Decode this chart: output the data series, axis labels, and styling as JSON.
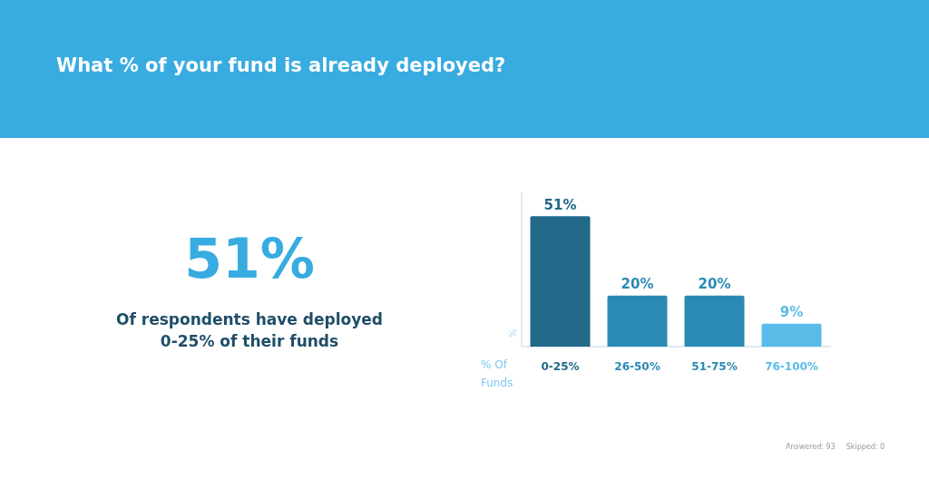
{
  "chart_data": {
    "type": "bar",
    "title": "What % of your fund is already deployed?",
    "categories": [
      "0-25%",
      "26-50%",
      "51-75%",
      "76-100%"
    ],
    "values": [
      51,
      20,
      20,
      9
    ],
    "colors": [
      "#22698a",
      "#2a8ab5",
      "#2a8ab5",
      "#5bbbe8"
    ],
    "value_labels": [
      "51%",
      "20%",
      "20%",
      "9%"
    ],
    "xlabel": "% Of Funds",
    "ylabel": "%",
    "annotations": [
      "51%",
      "Of respondents have deployed 0-25% of their funds",
      "Answered: 93",
      "Skipped: 0"
    ]
  }
}
